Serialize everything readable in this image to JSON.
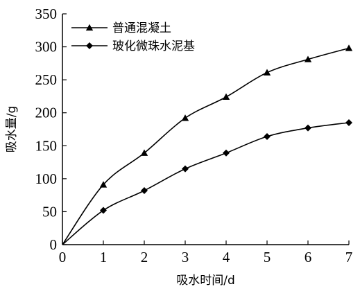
{
  "chart_data": {
    "type": "line",
    "xlabel": "吸水时间/d",
    "ylabel": "吸水量/g",
    "xlim": [
      0,
      7
    ],
    "ylim": [
      0,
      350
    ],
    "xticks": [
      0,
      1,
      2,
      3,
      4,
      5,
      6,
      7
    ],
    "yticks": [
      0,
      50,
      100,
      150,
      200,
      250,
      300,
      350
    ],
    "grid": false,
    "legend_position": "top-left",
    "series": [
      {
        "name": "普通混凝土",
        "marker": "triangle",
        "x": [
          0,
          1,
          2,
          3,
          4,
          5,
          6,
          7
        ],
        "y": [
          0,
          91,
          139,
          192,
          224,
          261,
          281,
          298
        ]
      },
      {
        "name": "玻化微珠水泥基",
        "marker": "diamond",
        "x": [
          0,
          1,
          2,
          3,
          4,
          5,
          6,
          7
        ],
        "y": [
          0,
          52,
          82,
          115,
          139,
          164,
          177,
          185
        ]
      }
    ]
  }
}
